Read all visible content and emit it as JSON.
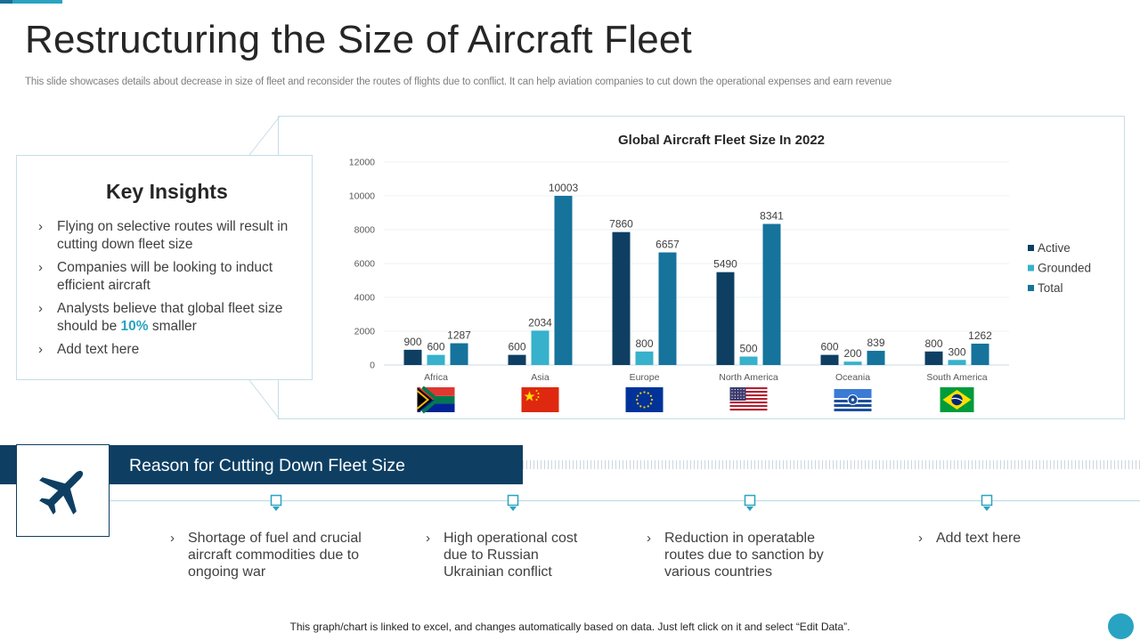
{
  "header": {
    "title": "Restructuring the Size of Aircraft Fleet",
    "subtitle": "This slide showcases details about decrease in size of fleet and reconsider the routes of flights due to conflict. It can help aviation companies to cut down the operational expenses and earn revenue"
  },
  "insights": {
    "title": "Key Insights",
    "items": [
      {
        "text": "Flying on selective routes will result in cutting down fleet size"
      },
      {
        "text": "Companies will be looking to induct efficient aircraft"
      },
      {
        "before": "Analysts believe that global fleet size should be ",
        "highlight": "10%",
        "after": " smaller"
      },
      {
        "text": "Add text here"
      }
    ]
  },
  "chart_data": {
    "type": "bar",
    "title": "Global Aircraft Fleet Size In 2022",
    "categories": [
      "Africa",
      "Asia",
      "Europe",
      "North America",
      "Oceania",
      "South America"
    ],
    "series": [
      {
        "name": "Active",
        "color": "#0e3f63",
        "values": [
          900,
          600,
          7860,
          5490,
          600,
          800
        ]
      },
      {
        "name": "Grounded",
        "color": "#37b1cc",
        "values": [
          600,
          2034,
          800,
          500,
          200,
          300
        ]
      },
      {
        "name": "Total",
        "color": "#15739c",
        "values": [
          1287,
          10003,
          6657,
          8341,
          839,
          1262
        ]
      }
    ],
    "ylim": [
      0,
      12000
    ],
    "yticks": [
      0,
      2000,
      4000,
      6000,
      8000,
      10000,
      12000
    ],
    "legend": "right",
    "grid": true,
    "flags": [
      "south-africa-flag",
      "china-flag",
      "eu-flag",
      "usa-flag",
      "oceania-flag",
      "brazil-flag"
    ]
  },
  "banner": {
    "title": "Reason for Cutting Down Fleet Size",
    "icon": "airplane-icon"
  },
  "reasons": [
    {
      "text": "Shortage of fuel and crucial aircraft commodities due to ongoing war"
    },
    {
      "text": "High operational cost due to Russian Ukrainian  conflict"
    },
    {
      "text": "Reduction in operatable routes due to sanction by various countries"
    },
    {
      "text": "Add text here"
    }
  ],
  "footer": {
    "note": "This graph/chart is linked to excel, and changes automatically based on data. Just left click on it and select “Edit Data”."
  },
  "colors": {
    "navy": "#0e3f63",
    "teal": "#37b1cc",
    "blue": "#15739c",
    "accent": "#29a3c2"
  }
}
